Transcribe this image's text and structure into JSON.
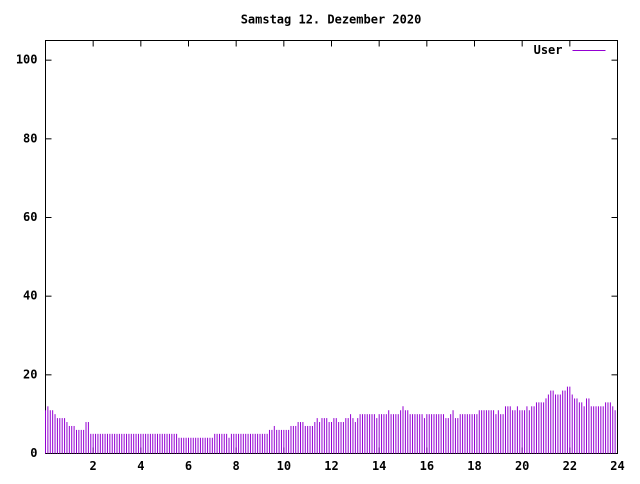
{
  "chart_data": {
    "type": "impulses",
    "title": "Samstag 12. Dezember 2020",
    "x": [
      0.0,
      0.1,
      0.2,
      0.3,
      0.4,
      0.5,
      0.6,
      0.7,
      0.8,
      0.9,
      1.0,
      1.1,
      1.2,
      1.3,
      1.4,
      1.5,
      1.6,
      1.7,
      1.8,
      1.9,
      2.0,
      2.1,
      2.2,
      2.3,
      2.4,
      2.5,
      2.6,
      2.7,
      2.8,
      2.9,
      3.0,
      3.1,
      3.2,
      3.3,
      3.4,
      3.5,
      3.6,
      3.7,
      3.8,
      3.9,
      4.0,
      4.1,
      4.2,
      4.3,
      4.4,
      4.5,
      4.6,
      4.7,
      4.8,
      4.9,
      5.0,
      5.1,
      5.2,
      5.3,
      5.4,
      5.5,
      5.6,
      5.7,
      5.8,
      5.9,
      6.0,
      6.1,
      6.2,
      6.3,
      6.4,
      6.5,
      6.6,
      6.7,
      6.8,
      6.9,
      7.0,
      7.1,
      7.2,
      7.3,
      7.4,
      7.5,
      7.6,
      7.7,
      7.8,
      7.9,
      8.0,
      8.1,
      8.2,
      8.3,
      8.4,
      8.5,
      8.6,
      8.7,
      8.8,
      8.9,
      9.0,
      9.1,
      9.2,
      9.3,
      9.4,
      9.5,
      9.6,
      9.7,
      9.8,
      9.9,
      10.0,
      10.1,
      10.2,
      10.3,
      10.4,
      10.5,
      10.6,
      10.7,
      10.8,
      10.9,
      11.0,
      11.1,
      11.2,
      11.3,
      11.4,
      11.5,
      11.6,
      11.7,
      11.8,
      11.9,
      12.0,
      12.1,
      12.2,
      12.3,
      12.4,
      12.5,
      12.6,
      12.7,
      12.8,
      12.9,
      13.0,
      13.1,
      13.2,
      13.3,
      13.4,
      13.5,
      13.6,
      13.7,
      13.8,
      13.9,
      14.0,
      14.1,
      14.2,
      14.3,
      14.4,
      14.5,
      14.6,
      14.7,
      14.8,
      14.9,
      15.0,
      15.1,
      15.2,
      15.3,
      15.4,
      15.5,
      15.6,
      15.7,
      15.8,
      15.9,
      16.0,
      16.1,
      16.2,
      16.3,
      16.4,
      16.5,
      16.6,
      16.7,
      16.8,
      16.9,
      17.0,
      17.1,
      17.2,
      17.3,
      17.4,
      17.5,
      17.6,
      17.7,
      17.8,
      17.9,
      18.0,
      18.1,
      18.2,
      18.3,
      18.4,
      18.5,
      18.6,
      18.7,
      18.8,
      18.9,
      19.0,
      19.1,
      19.2,
      19.3,
      19.4,
      19.5,
      19.6,
      19.7,
      19.8,
      19.9,
      20.0,
      20.1,
      20.2,
      20.3,
      20.4,
      20.5,
      20.6,
      20.7,
      20.8,
      20.9,
      21.0,
      21.1,
      21.2,
      21.3,
      21.4,
      21.5,
      21.6,
      21.7,
      21.8,
      21.9,
      22.0,
      22.1,
      22.2,
      22.3,
      22.4,
      22.5,
      22.6,
      22.7,
      22.8,
      22.9,
      23.0,
      23.1,
      23.2,
      23.3,
      23.4,
      23.5,
      23.6,
      23.7,
      23.8,
      23.9
    ],
    "series": [
      {
        "name": "User",
        "color": "#9400d3",
        "values": [
          11,
          12,
          11,
          11,
          10,
          9,
          9,
          9,
          9,
          8,
          7,
          7,
          7,
          6,
          6,
          6,
          6,
          8,
          8,
          5,
          5,
          5,
          5,
          5,
          5,
          5,
          5,
          5,
          5,
          5,
          5,
          5,
          5,
          5,
          5,
          5,
          5,
          5,
          5,
          5,
          5,
          5,
          5,
          5,
          5,
          5,
          5,
          5,
          5,
          5,
          5,
          5,
          5,
          5,
          5,
          5,
          4,
          4,
          4,
          4,
          4,
          4,
          4,
          4,
          4,
          4,
          4,
          4,
          4,
          4,
          4,
          5,
          5,
          5,
          5,
          5,
          5,
          4,
          5,
          5,
          5,
          5,
          5,
          5,
          5,
          5,
          5,
          5,
          5,
          5,
          5,
          5,
          5,
          5,
          6,
          6,
          7,
          6,
          6,
          6,
          6,
          6,
          6,
          7,
          7,
          7,
          8,
          8,
          8,
          7,
          7,
          7,
          7,
          8,
          9,
          8,
          9,
          9,
          9,
          8,
          8,
          9,
          9,
          8,
          8,
          8,
          9,
          9,
          10,
          9,
          8,
          9,
          10,
          10,
          10,
          10,
          10,
          10,
          10,
          9,
          10,
          10,
          10,
          10,
          11,
          10,
          10,
          10,
          10,
          11,
          12,
          11,
          11,
          10,
          10,
          10,
          10,
          10,
          10,
          9,
          10,
          10,
          10,
          10,
          10,
          10,
          10,
          10,
          9,
          9,
          10,
          11,
          9,
          9,
          10,
          10,
          10,
          10,
          10,
          10,
          10,
          10,
          11,
          11,
          11,
          11,
          11,
          11,
          11,
          10,
          11,
          10,
          10,
          12,
          12,
          12,
          11,
          11,
          12,
          11,
          11,
          11,
          12,
          11,
          12,
          12,
          13,
          13,
          13,
          13,
          14,
          15,
          16,
          16,
          15,
          15,
          15,
          16,
          16,
          17,
          17,
          15,
          14,
          14,
          13,
          13,
          12,
          14,
          14,
          12,
          12,
          12,
          12,
          12,
          12,
          13,
          13,
          13,
          12,
          11
        ]
      }
    ],
    "xlim": [
      0,
      24
    ],
    "xticks": [
      2,
      4,
      6,
      8,
      10,
      12,
      14,
      16,
      18,
      20,
      22,
      24
    ],
    "ylim": [
      0,
      105
    ],
    "yticks": [
      0,
      20,
      40,
      60,
      80,
      100
    ],
    "legend": "upper right"
  }
}
